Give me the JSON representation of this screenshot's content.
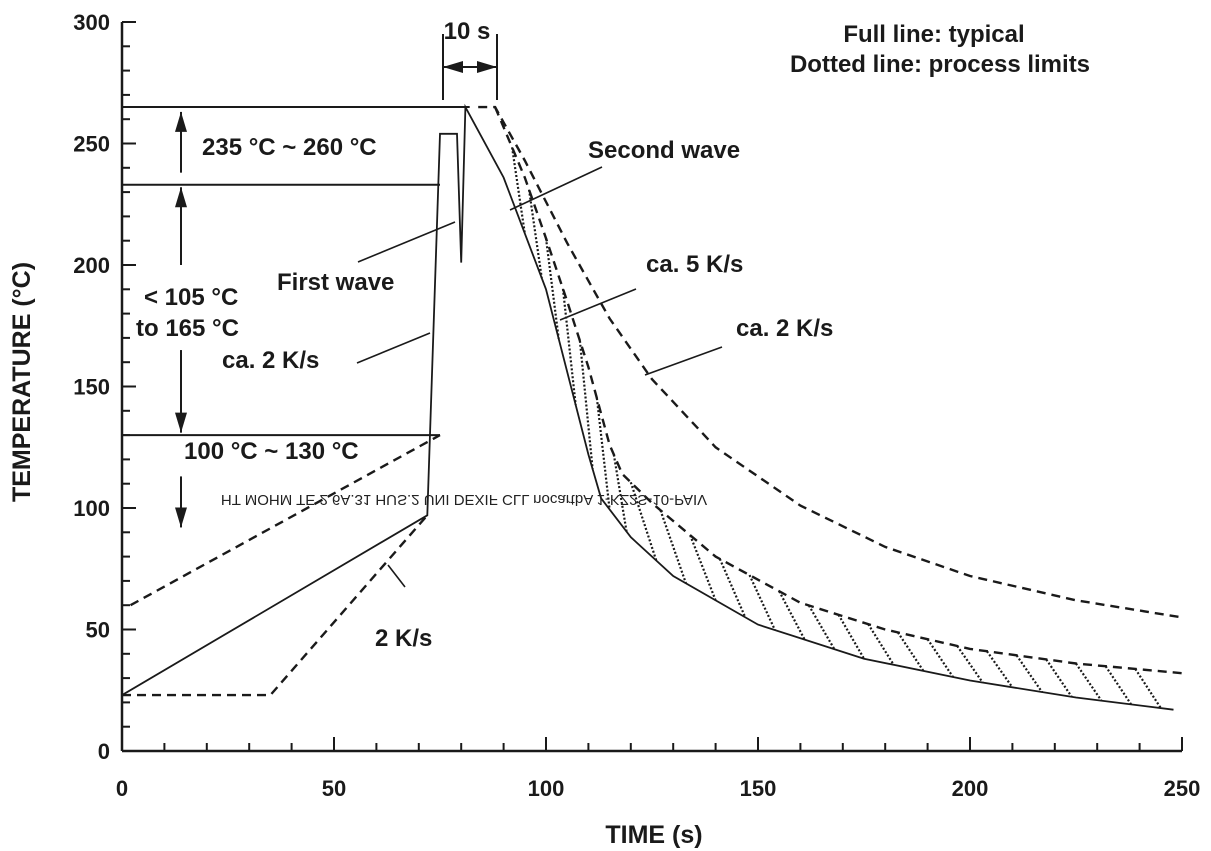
{
  "chart_data": {
    "type": "line",
    "xlabel": "TIME (s)",
    "ylabel": "TEMPERATURE (°C)",
    "xlim": [
      0,
      250
    ],
    "ylim": [
      0,
      300
    ],
    "x_ticks": [
      0,
      50,
      100,
      150,
      200,
      250
    ],
    "y_ticks": [
      0,
      50,
      100,
      150,
      200,
      250,
      300
    ],
    "legend_text": [
      "Full line: typical",
      "Dotted line: process limits"
    ],
    "series": [
      {
        "style": "solid",
        "points": [
          [
            0,
            23
          ],
          [
            72,
            97
          ],
          [
            75,
            254
          ],
          [
            79,
            254
          ],
          [
            80,
            201
          ],
          [
            81,
            265
          ],
          [
            90,
            236
          ],
          [
            100,
            190
          ],
          [
            110,
            122
          ],
          [
            113,
            104
          ],
          [
            120,
            88
          ],
          [
            130,
            72
          ],
          [
            150,
            52
          ],
          [
            175,
            38
          ],
          [
            200,
            29
          ],
          [
            225,
            22
          ],
          [
            248,
            17
          ]
        ]
      },
      {
        "style": "dashed",
        "points": [
          [
            0,
            23
          ],
          [
            35,
            23
          ],
          [
            72,
            97
          ]
        ]
      },
      {
        "style": "dashed",
        "points": [
          [
            2,
            60
          ],
          [
            75,
            130
          ]
        ]
      },
      {
        "style": "dashed",
        "points": [
          [
            84,
            265
          ],
          [
            88,
            265
          ],
          [
            95,
            243
          ],
          [
            105,
            209
          ],
          [
            115,
            178
          ],
          [
            125,
            153
          ],
          [
            140,
            125
          ],
          [
            160,
            101
          ],
          [
            180,
            84
          ],
          [
            200,
            72
          ],
          [
            225,
            62
          ],
          [
            250,
            55
          ]
        ]
      },
      {
        "style": "dashed",
        "points": [
          [
            88,
            265
          ],
          [
            95,
            236
          ],
          [
            100,
            211
          ],
          [
            105,
            185
          ],
          [
            110,
            158
          ],
          [
            115,
            126
          ],
          [
            118,
            114
          ],
          [
            125,
            102
          ],
          [
            140,
            80
          ],
          [
            160,
            61
          ],
          [
            180,
            50
          ],
          [
            200,
            42
          ],
          [
            225,
            36
          ],
          [
            250,
            32
          ]
        ]
      }
    ],
    "annotations": [
      {
        "text": "10 s"
      },
      {
        "text": "235 °C ~ 260 °C"
      },
      {
        "text": "< 105 °C"
      },
      {
        "text": "to 165 °C"
      },
      {
        "text": "100 °C ~ 130 °C"
      },
      {
        "text": "First wave"
      },
      {
        "text": "Second wave"
      },
      {
        "text": "ca. 5 K/s"
      },
      {
        "text": "ca. 2 K/s"
      },
      {
        "text": "ca. 2 K/s"
      },
      {
        "text": "2 K/s"
      }
    ],
    "reference_levels": [
      265,
      233,
      130
    ],
    "watermark": "HT MOHM TE 2.6A.31 HUS.2 UNI DEXIF CLL nocartbA 1-KZ2S-10-PAIV"
  }
}
